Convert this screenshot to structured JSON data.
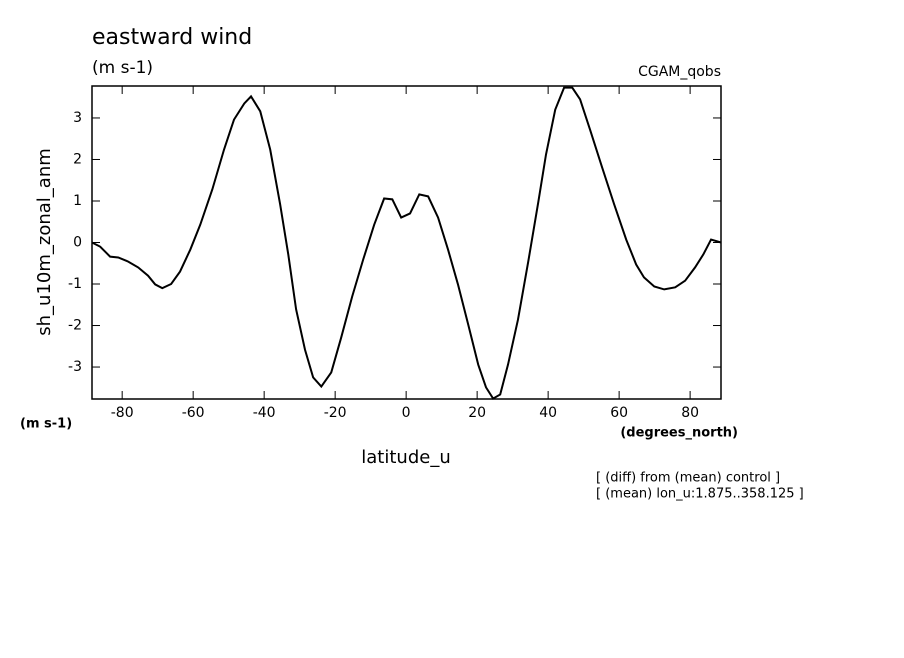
{
  "chart_data": {
    "type": "line",
    "title": "eastward wind",
    "subtitle": "(m s-1)",
    "dataset": "CGAM_qobs",
    "y_label": "sh_u10m_zonal_anm",
    "y_units": "(m s-1)",
    "x_label": "latitude_u",
    "x_units": "(degrees_north)",
    "notes": [
      "[ (diff) from (mean) control ]",
      "[ (mean) lon_u:1.875..358.125 ]"
    ],
    "color": "#000000",
    "x": [
      -88.5,
      -86.2,
      -83.4,
      -81.1,
      -78.3,
      -75.5,
      -72.7,
      -70.7,
      -68.7,
      -66.2,
      -63.7,
      -60.8,
      -58,
      -54.6,
      -51.3,
      -48.5,
      -45.6,
      -43.7,
      -41.1,
      -38.3,
      -35.5,
      -33.2,
      -31,
      -28.5,
      -26.2,
      -23.9,
      -21.1,
      -18.3,
      -15.2,
      -12.1,
      -9,
      -6.2,
      -3.9,
      -1.4,
      1.1,
      3.7,
      6.2,
      9,
      11.8,
      14.6,
      17.5,
      20.3,
      22.5,
      24.5,
      26.5,
      28.7,
      31.5,
      34.4,
      37.2,
      39.4,
      42,
      44.5,
      46.8,
      49,
      51.8,
      55.2,
      58.6,
      62,
      64.8,
      67,
      69.9,
      72.7,
      75.8,
      78.6,
      81.4,
      83.7,
      85.9,
      88.7
    ],
    "values": [
      0,
      -0.1,
      -0.34,
      -0.36,
      -0.46,
      -0.6,
      -0.8,
      -1.01,
      -1.1,
      -1.0,
      -0.7,
      -0.17,
      0.43,
      1.28,
      2.24,
      2.96,
      3.35,
      3.52,
      3.16,
      2.24,
      0.92,
      -0.29,
      -1.61,
      -2.58,
      -3.25,
      -3.47,
      -3.13,
      -2.29,
      -1.3,
      -0.41,
      0.43,
      1.06,
      1.04,
      0.6,
      0.7,
      1.16,
      1.11,
      0.6,
      -0.17,
      -1.01,
      -1.98,
      -2.94,
      -3.49,
      -3.76,
      -3.66,
      -2.94,
      -1.86,
      -0.46,
      0.96,
      2.12,
      3.2,
      3.73,
      3.73,
      3.45,
      2.72,
      1.81,
      0.92,
      0.07,
      -0.53,
      -0.84,
      -1.06,
      -1.13,
      -1.08,
      -0.92,
      -0.6,
      -0.29,
      0.07,
      0
    ],
    "xlim": [
      -88.5,
      88.7
    ],
    "ylim": [
      -3.77,
      3.77
    ],
    "xticks": [
      -80,
      -60,
      -40,
      -20,
      0,
      20,
      40,
      60,
      80
    ],
    "yticks": [
      -3,
      -2,
      -1,
      0,
      1,
      2,
      3
    ]
  }
}
